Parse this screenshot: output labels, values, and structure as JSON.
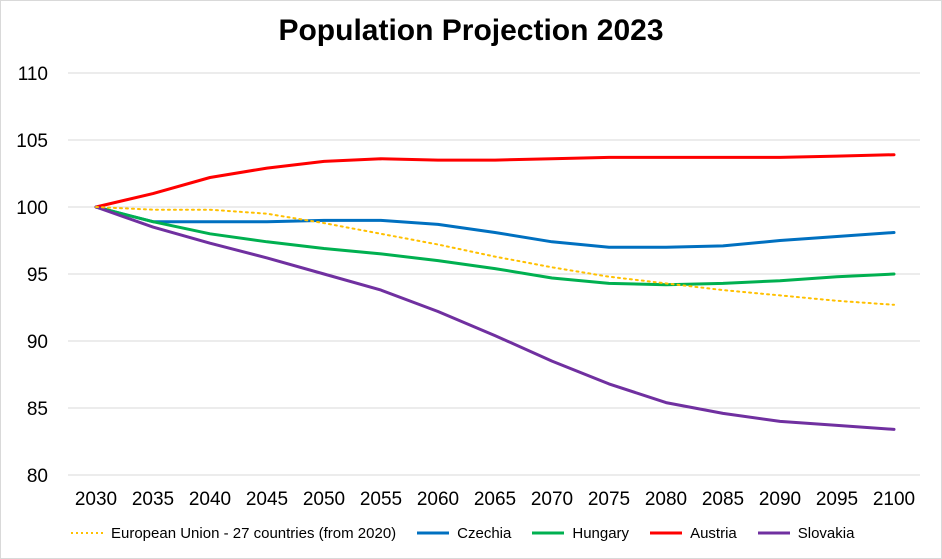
{
  "chart_data": {
    "type": "line",
    "title": "Population Projection 2023",
    "xlabel": "",
    "ylabel": "",
    "x": [
      "2030",
      "2035",
      "2040",
      "2045",
      "2050",
      "2055",
      "2060",
      "2065",
      "2070",
      "2075",
      "2080",
      "2085",
      "2090",
      "2095",
      "2100"
    ],
    "ylim": [
      80,
      110
    ],
    "yticks": [
      80,
      85,
      90,
      95,
      100,
      105,
      110
    ],
    "grid": true,
    "legend_position": "bottom",
    "series": [
      {
        "name": "European Union - 27 countries (from 2020)",
        "color": "#ffc000",
        "dashed": true,
        "values": [
          100,
          99.8,
          99.8,
          99.5,
          98.8,
          98.0,
          97.2,
          96.3,
          95.5,
          94.8,
          94.3,
          93.8,
          93.4,
          93.0,
          92.7
        ]
      },
      {
        "name": "Czechia",
        "color": "#0070c0",
        "dashed": false,
        "values": [
          100,
          98.9,
          98.9,
          98.9,
          99.0,
          99.0,
          98.7,
          98.1,
          97.4,
          97.0,
          97.0,
          97.1,
          97.5,
          97.8,
          98.1
        ]
      },
      {
        "name": "Hungary",
        "color": "#00b050",
        "dashed": false,
        "values": [
          100,
          98.9,
          98.0,
          97.4,
          96.9,
          96.5,
          96.0,
          95.4,
          94.7,
          94.3,
          94.2,
          94.3,
          94.5,
          94.8,
          95.0
        ]
      },
      {
        "name": "Austria",
        "color": "#ff0000",
        "dashed": false,
        "values": [
          100,
          101.0,
          102.2,
          102.9,
          103.4,
          103.6,
          103.5,
          103.5,
          103.6,
          103.7,
          103.7,
          103.7,
          103.7,
          103.8,
          103.9
        ]
      },
      {
        "name": "Slovakia",
        "color": "#7030a0",
        "dashed": false,
        "values": [
          100,
          98.5,
          97.3,
          96.2,
          95.0,
          93.8,
          92.2,
          90.4,
          88.5,
          86.8,
          85.4,
          84.6,
          84.0,
          83.7,
          83.4
        ]
      }
    ]
  }
}
